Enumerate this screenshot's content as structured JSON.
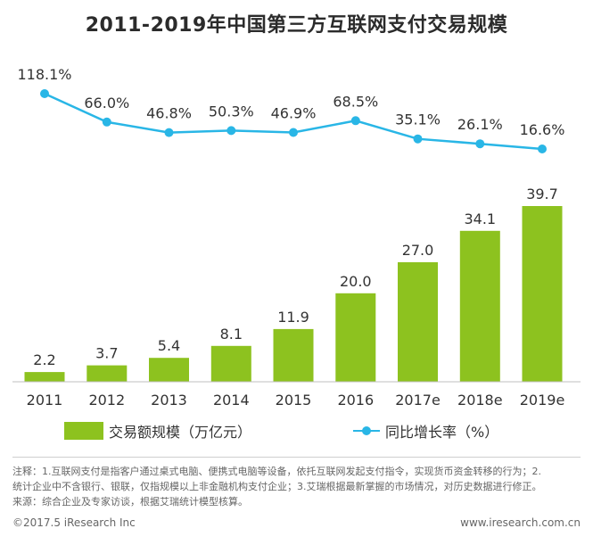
{
  "title": "2011-2019年中国第三方互联网支付交易规模",
  "chart_data": {
    "type": "bar",
    "title": "2011-2019年中国第三方互联网支付交易规模",
    "categories": [
      "2011",
      "2012",
      "2013",
      "2014",
      "2015",
      "2016",
      "2017e",
      "2018e",
      "2019e"
    ],
    "series": [
      {
        "name": "交易额规模（万亿元）",
        "type": "bar",
        "values": [
          2.2,
          3.7,
          5.4,
          8.1,
          11.9,
          20.0,
          27.0,
          34.1,
          39.7
        ],
        "labels": [
          "2.2",
          "3.7",
          "5.4",
          "8.1",
          "11.9",
          "20.0",
          "27.0",
          "34.1",
          "39.7"
        ],
        "color": "#8dc21f"
      },
      {
        "name": "同比增长率（%）",
        "type": "line",
        "values": [
          118.1,
          66.0,
          46.8,
          50.3,
          46.9,
          68.5,
          35.1,
          26.1,
          16.6
        ],
        "labels": [
          "118.1%",
          "66.0%",
          "46.8%",
          "50.3%",
          "46.9%",
          "68.5%",
          "35.1%",
          "26.1%",
          "16.6%"
        ],
        "color": "#29b6e6"
      }
    ],
    "legend_position": "bottom",
    "grid": false
  },
  "legend": {
    "bar_label": "交易额规模（万亿元）",
    "line_label": "同比增长率（%）"
  },
  "notes": {
    "line1": "注释：1.互联网支付是指客户通过桌式电脑、便携式电脑等设备，依托互联网发起支付指令，实现货币资金转移的行为；2.",
    "line2": "统计企业中不含银行、银联，仅指规模以上非金融机构支付企业；3.艾瑞根据最新掌握的市场情况，对历史数据进行修正。",
    "line3": "来源：综合企业及专家访谈，根据艾瑞统计模型核算。"
  },
  "footer": {
    "copyright": "©2017.5 iResearch Inc",
    "website": "www.iresearch.com.cn"
  }
}
